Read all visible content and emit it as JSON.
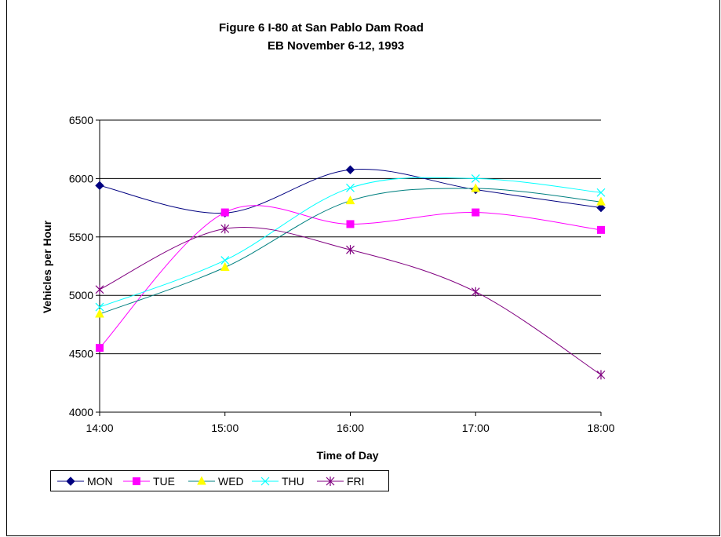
{
  "chart_data": {
    "type": "line",
    "title": "Figure 6  I-80 at San Pablo Dam Road",
    "subtitle": "EB November 6-12, 1993",
    "xlabel": "Time of Day",
    "ylabel": "Vehicles per Hour",
    "categories": [
      "14:00",
      "15:00",
      "16:00",
      "17:00",
      "18:00"
    ],
    "ylim": [
      4000,
      6500
    ],
    "yticks": [
      4000,
      4500,
      5000,
      5500,
      6000,
      6500
    ],
    "grid": true,
    "legend_position": "bottom-left",
    "series": [
      {
        "name": "MON",
        "values": [
          5940,
          5705,
          6075,
          5905,
          5750
        ],
        "color": "#000080",
        "marker": "diamond"
      },
      {
        "name": "TUE",
        "values": [
          4550,
          5710,
          5610,
          5710,
          5560
        ],
        "color": "#FF00FF",
        "marker": "square"
      },
      {
        "name": "WED",
        "values": [
          4840,
          5240,
          5810,
          5915,
          5800
        ],
        "color": "#FFFF00",
        "line_color": "#008080",
        "marker": "triangle"
      },
      {
        "name": "THU",
        "values": [
          4900,
          5300,
          5920,
          6000,
          5880
        ],
        "color": "#00FFFF",
        "marker": "x"
      },
      {
        "name": "FRI",
        "values": [
          5050,
          5570,
          5390,
          5030,
          4320
        ],
        "color": "#800080",
        "marker": "star"
      }
    ]
  }
}
